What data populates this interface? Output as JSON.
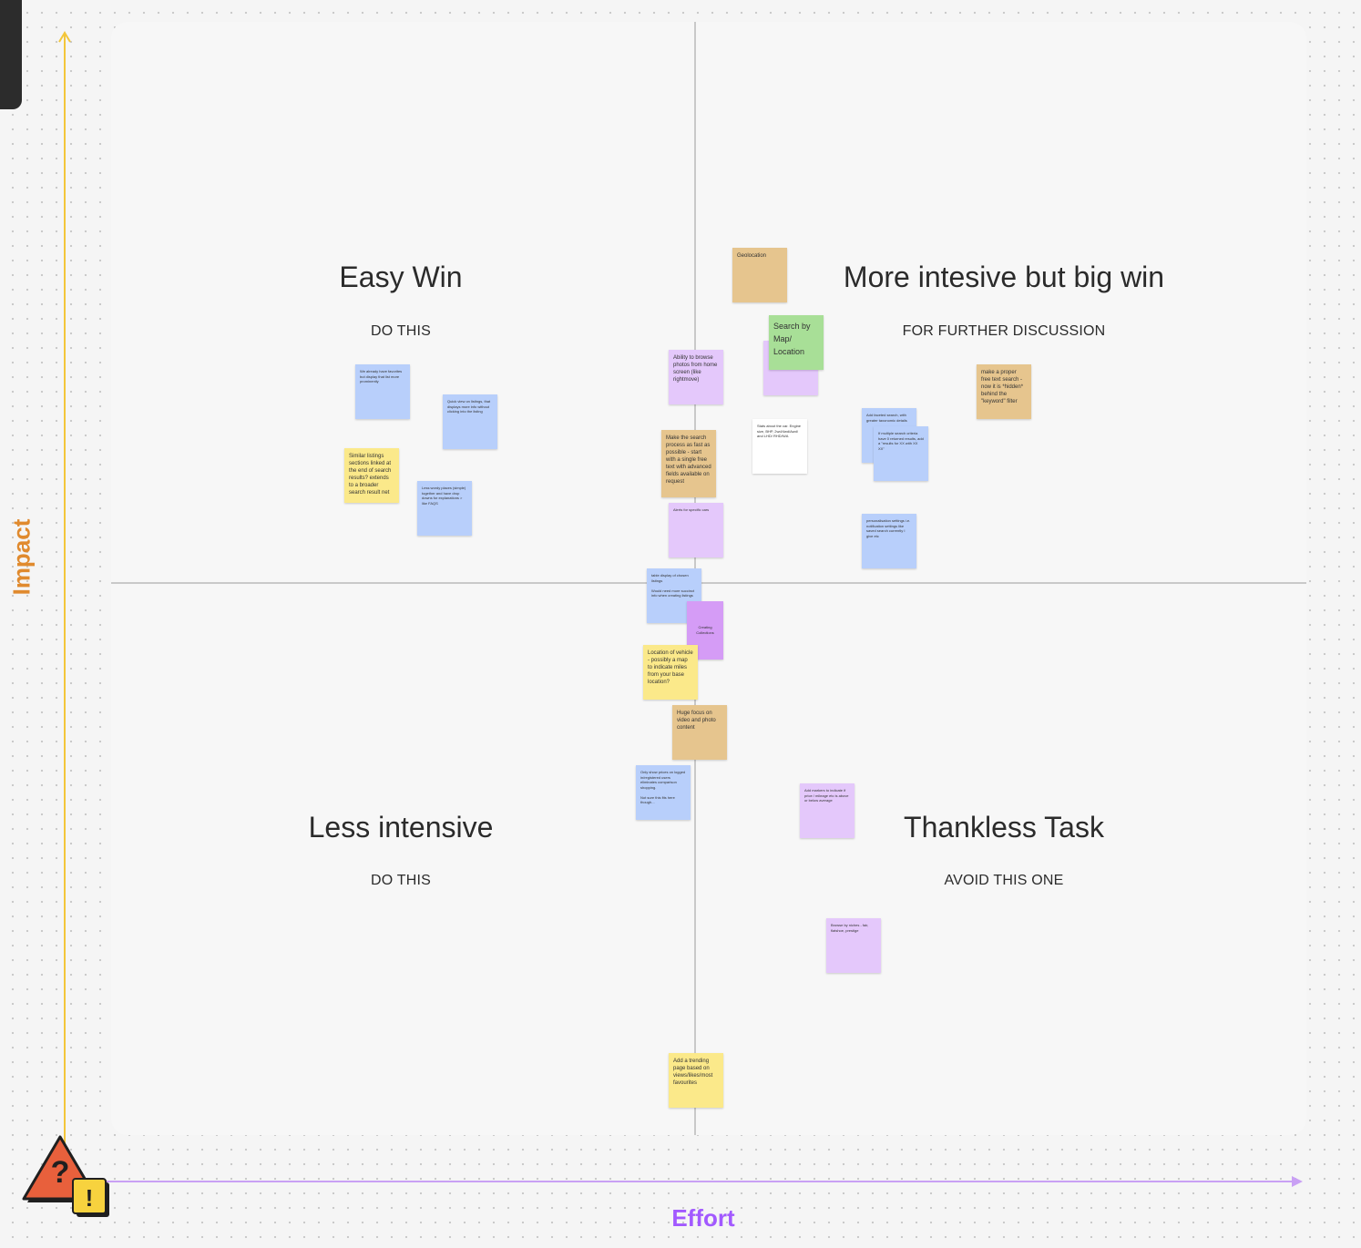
{
  "axes": {
    "y_label": "Impact",
    "x_label": "Effort",
    "y_color": "#e08a2e",
    "x_color": "#a259ff"
  },
  "quadrants": {
    "top_left": {
      "title": "Easy Win",
      "subtitle": "DO THIS"
    },
    "top_right": {
      "title": "More intesive but big win",
      "subtitle": "FOR FURTHER DISCUSSION"
    },
    "bottom_left": {
      "title": "Less intensive",
      "subtitle": "DO THIS"
    },
    "bottom_right": {
      "title": "Thankless Task",
      "subtitle": "AVOID THIS ONE"
    }
  },
  "stickies": {
    "s1": "We already have favorites but display that list more prominently",
    "s2": "Quick view on listings, that displays more info without clicking into the listing",
    "s3": "Similar listings sections linked at the end of search results? extends to a broader search result net",
    "s4": "Less wordy places (simple) together and have drop downs for explanations > like FAQS",
    "s5": "Geolocation",
    "s6": "Search by Map/ Location",
    "s7": "Ability to browse photos from home screen (like rightmove)",
    "s8": "make a proper free text search - now it is *hidden* behind the \"keyword\" filter",
    "s9": "Make the search process as fast as possible - start with a single free text with advanced fields available on request",
    "s10": "Stats about the car. Engine size, BHP, 2wd/4wd/Awd/ and LHD/ RHD/N/A",
    "s11": "Add faceted search, with greater taxonomic details",
    "s12": "If multiple search criteria have 0 returned results, add a \"results for XX with XX XX\"",
    "s13": "Alerts for specific cars",
    "s14": "personalisation settings i.e. notification settings like saved search currently I give etc",
    "s15": "table display of chosen listings\n\nWould need more succinct info when creating listings",
    "s16": "Creating Collections",
    "s17": "Location of vehicle - possibly a map to indicate miles from your base location?",
    "s18": "Huge focus on video and photo content",
    "s19": "Only show prices on logged in/registered users eliminates comparison shopping.\n\nNot sure this fits here though...",
    "s20": "Add markers to indicate if price / mileage etc is above or below average",
    "s21": "Browse by niches - fair, flatshoe, prestige",
    "s22": "Add a trending page based on views/likes/most favourites"
  }
}
